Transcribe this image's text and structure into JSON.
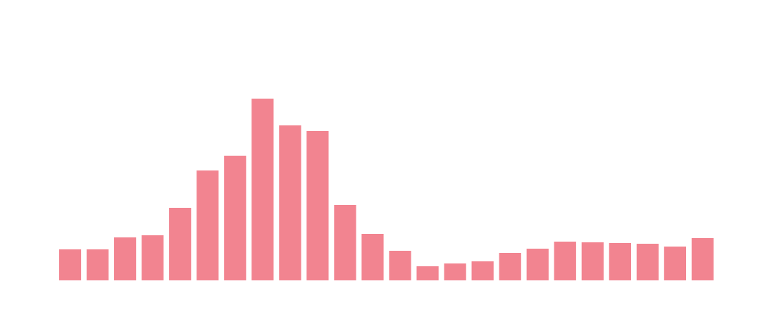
{
  "chart_data": {
    "type": "bar",
    "categories": [
      null,
      null,
      null,
      null,
      null,
      null,
      null,
      null,
      null,
      null,
      null,
      null,
      null,
      null,
      null,
      null,
      null,
      null,
      null,
      null,
      null,
      null,
      null,
      null
    ],
    "values": [
      44,
      44,
      61,
      64,
      103,
      156,
      177,
      258,
      220,
      212,
      107,
      66,
      42,
      20,
      24,
      27,
      39,
      45,
      55,
      54,
      53,
      52,
      48,
      60
    ],
    "color": "#f28490",
    "ylim": [
      0,
      300
    ]
  }
}
